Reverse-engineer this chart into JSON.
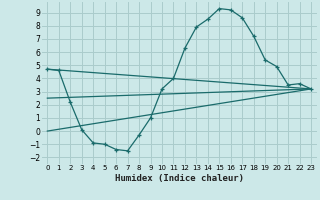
{
  "xlabel": "Humidex (Indice chaleur)",
  "bg_color": "#cce8e8",
  "grid_color": "#aacccc",
  "line_color": "#1a6b6b",
  "xlim": [
    -0.5,
    23.5
  ],
  "ylim": [
    -2.5,
    9.8
  ],
  "xticks": [
    0,
    1,
    2,
    3,
    4,
    5,
    6,
    7,
    8,
    9,
    10,
    11,
    12,
    13,
    14,
    15,
    16,
    17,
    18,
    19,
    20,
    21,
    22,
    23
  ],
  "yticks": [
    -2,
    -1,
    0,
    1,
    2,
    3,
    4,
    5,
    6,
    7,
    8,
    9
  ],
  "line1_x": [
    0,
    1,
    2,
    3,
    4,
    5,
    6,
    7,
    8,
    9,
    10,
    11,
    12,
    13,
    14,
    15,
    16,
    17,
    18,
    19,
    20,
    21,
    22,
    23
  ],
  "line1_y": [
    4.7,
    4.6,
    2.2,
    0.1,
    -0.9,
    -1.0,
    -1.4,
    -1.5,
    -0.3,
    1.0,
    3.2,
    4.0,
    6.3,
    7.9,
    8.5,
    9.3,
    9.2,
    8.6,
    7.2,
    5.4,
    4.9,
    3.5,
    3.6,
    3.2
  ],
  "line2_x": [
    0,
    23
  ],
  "line2_y": [
    4.7,
    3.2
  ],
  "line3_x": [
    0,
    23
  ],
  "line3_y": [
    2.5,
    3.2
  ],
  "line4_x": [
    0,
    23
  ],
  "line4_y": [
    0.0,
    3.2
  ]
}
